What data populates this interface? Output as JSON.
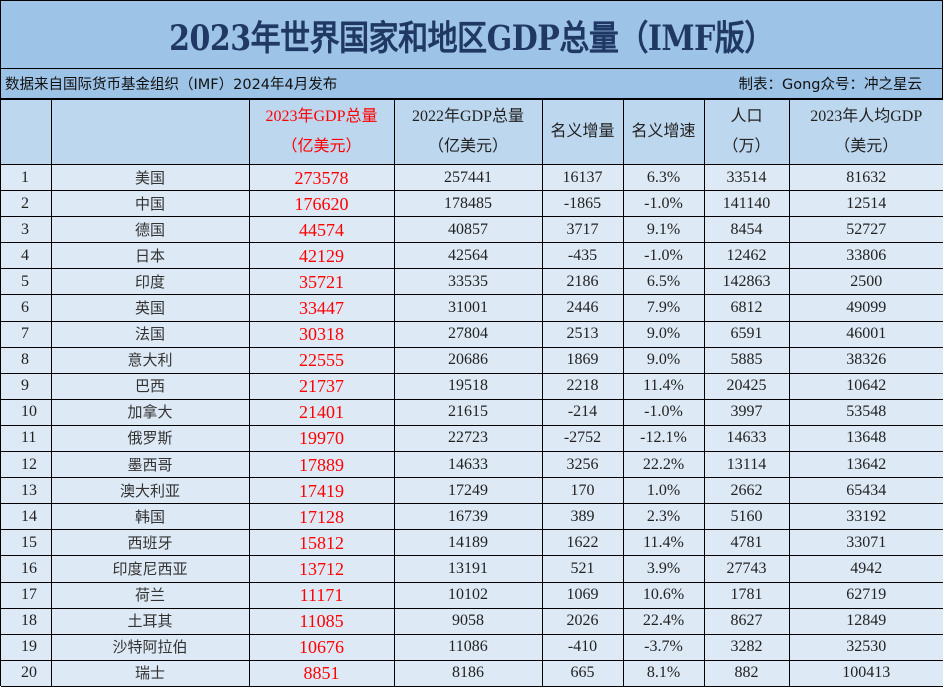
{
  "title": "2023年世界国家和地区GDP总量（IMF版）",
  "source": {
    "left": "数据来自国际货币基金组织（IMF）2024年4月发布",
    "right": "制表：Gong众号：冲之星云"
  },
  "colors": {
    "header_bg": "#9dc3e6",
    "column_header_bg": "#bdd7ee",
    "cell_bg": "#dde9f5",
    "title_color": "#1f3864",
    "highlight_red": "#ff0000"
  },
  "columns": [
    {
      "line1": "",
      "line2": ""
    },
    {
      "line1": "",
      "line2": ""
    },
    {
      "line1": "2023年GDP总量",
      "line2": "（亿美元）"
    },
    {
      "line1": "2022年GDP总量",
      "line2": "（亿美元）"
    },
    {
      "line1": "名义增量",
      "line2": ""
    },
    {
      "line1": "名义增速",
      "line2": ""
    },
    {
      "line1": "人口",
      "line2": "（万）"
    },
    {
      "line1": "2023年人均GDP",
      "line2": "（美元）"
    }
  ],
  "rows": [
    {
      "rank": "1",
      "name": "美国",
      "gdp2023": "273578",
      "gdp2022": "257441",
      "increase": "16137",
      "growth": "6.3%",
      "population": "33514",
      "per_capita": "81632"
    },
    {
      "rank": "2",
      "name": "中国",
      "gdp2023": "176620",
      "gdp2022": "178485",
      "increase": "-1865",
      "growth": "-1.0%",
      "population": "141140",
      "per_capita": "12514"
    },
    {
      "rank": "3",
      "name": "德国",
      "gdp2023": "44574",
      "gdp2022": "40857",
      "increase": "3717",
      "growth": "9.1%",
      "population": "8454",
      "per_capita": "52727"
    },
    {
      "rank": "4",
      "name": "日本",
      "gdp2023": "42129",
      "gdp2022": "42564",
      "increase": "-435",
      "growth": "-1.0%",
      "population": "12462",
      "per_capita": "33806"
    },
    {
      "rank": "5",
      "name": "印度",
      "gdp2023": "35721",
      "gdp2022": "33535",
      "increase": "2186",
      "growth": "6.5%",
      "population": "142863",
      "per_capita": "2500"
    },
    {
      "rank": "6",
      "name": "英国",
      "gdp2023": "33447",
      "gdp2022": "31001",
      "increase": "2446",
      "growth": "7.9%",
      "population": "6812",
      "per_capita": "49099"
    },
    {
      "rank": "7",
      "name": "法国",
      "gdp2023": "30318",
      "gdp2022": "27804",
      "increase": "2513",
      "growth": "9.0%",
      "population": "6591",
      "per_capita": "46001"
    },
    {
      "rank": "8",
      "name": "意大利",
      "gdp2023": "22555",
      "gdp2022": "20686",
      "increase": "1869",
      "growth": "9.0%",
      "population": "5885",
      "per_capita": "38326"
    },
    {
      "rank": "9",
      "name": "巴西",
      "gdp2023": "21737",
      "gdp2022": "19518",
      "increase": "2218",
      "growth": "11.4%",
      "population": "20425",
      "per_capita": "10642"
    },
    {
      "rank": "10",
      "name": "加拿大",
      "gdp2023": "21401",
      "gdp2022": "21615",
      "increase": "-214",
      "growth": "-1.0%",
      "population": "3997",
      "per_capita": "53548"
    },
    {
      "rank": "11",
      "name": "俄罗斯",
      "gdp2023": "19970",
      "gdp2022": "22723",
      "increase": "-2752",
      "growth": "-12.1%",
      "population": "14633",
      "per_capita": "13648"
    },
    {
      "rank": "12",
      "name": "墨西哥",
      "gdp2023": "17889",
      "gdp2022": "14633",
      "increase": "3256",
      "growth": "22.2%",
      "population": "13114",
      "per_capita": "13642"
    },
    {
      "rank": "13",
      "name": "澳大利亚",
      "gdp2023": "17419",
      "gdp2022": "17249",
      "increase": "170",
      "growth": "1.0%",
      "population": "2662",
      "per_capita": "65434"
    },
    {
      "rank": "14",
      "name": "韩国",
      "gdp2023": "17128",
      "gdp2022": "16739",
      "increase": "389",
      "growth": "2.3%",
      "population": "5160",
      "per_capita": "33192"
    },
    {
      "rank": "15",
      "name": "西班牙",
      "gdp2023": "15812",
      "gdp2022": "14189",
      "increase": "1622",
      "growth": "11.4%",
      "population": "4781",
      "per_capita": "33071"
    },
    {
      "rank": "16",
      "name": "印度尼西亚",
      "gdp2023": "13712",
      "gdp2022": "13191",
      "increase": "521",
      "growth": "3.9%",
      "population": "27743",
      "per_capita": "4942"
    },
    {
      "rank": "17",
      "name": "荷兰",
      "gdp2023": "11171",
      "gdp2022": "10102",
      "increase": "1069",
      "growth": "10.6%",
      "population": "1781",
      "per_capita": "62719"
    },
    {
      "rank": "18",
      "name": "土耳其",
      "gdp2023": "11085",
      "gdp2022": "9058",
      "increase": "2026",
      "growth": "22.4%",
      "population": "8627",
      "per_capita": "12849"
    },
    {
      "rank": "19",
      "name": "沙特阿拉伯",
      "gdp2023": "10676",
      "gdp2022": "11086",
      "increase": "-410",
      "growth": "-3.7%",
      "population": "3282",
      "per_capita": "32530"
    },
    {
      "rank": "20",
      "name": "瑞士",
      "gdp2023": "8851",
      "gdp2022": "8186",
      "increase": "665",
      "growth": "8.1%",
      "population": "882",
      "per_capita": "100413"
    }
  ]
}
